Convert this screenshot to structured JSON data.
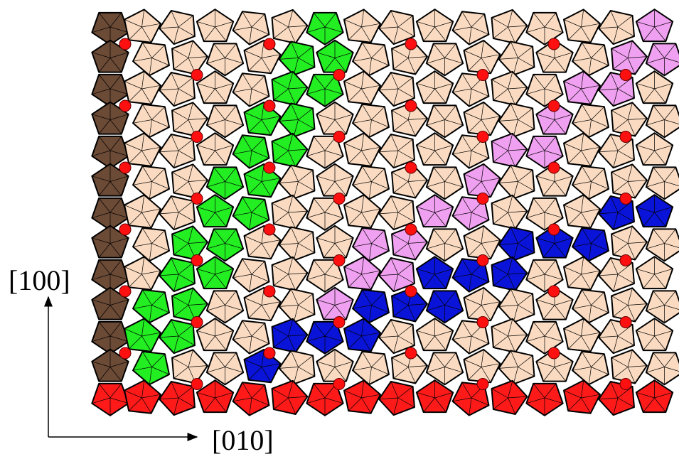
{
  "axes": {
    "vertical": "[100]",
    "horizontal": "[010]"
  }
}
